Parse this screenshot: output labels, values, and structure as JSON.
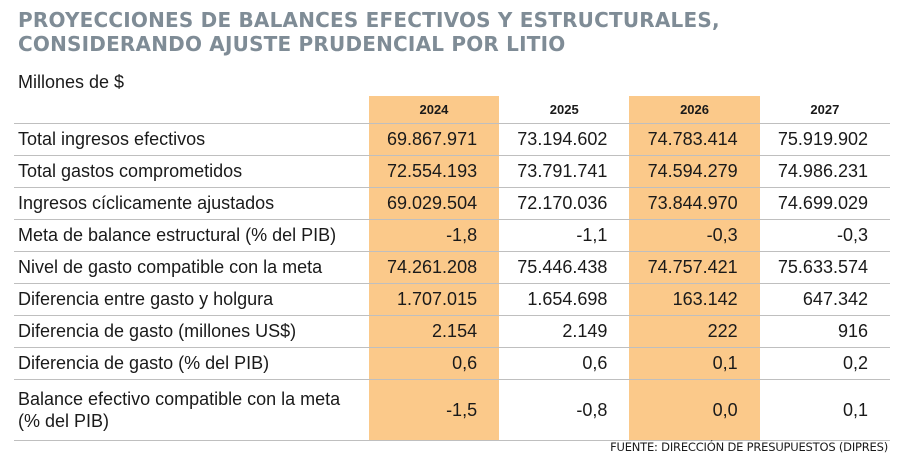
{
  "title_lines": [
    "PROYECCIONES DE BALANCES EFECTIVOS Y ESTRUCTURALES,",
    "CONSIDERANDO AJUSTE PRUDENCIAL POR LITIO"
  ],
  "units": "Millones de $",
  "highlight_color": "#fbc98a",
  "title_color": "#7f8c96",
  "table": {
    "years": [
      "2024",
      "2025",
      "2026",
      "2027"
    ],
    "highlighted_years": [
      "2024",
      "2026"
    ],
    "rows": [
      {
        "label": "Total ingresos efectivos",
        "values": [
          "69.867.971",
          "73.194.602",
          "74.783.414",
          "75.919.902"
        ]
      },
      {
        "label": "Total gastos comprometidos",
        "values": [
          "72.554.193",
          "73.791.741",
          "74.594.279",
          "74.986.231"
        ]
      },
      {
        "label": "Ingresos cíclicamente ajustados",
        "values": [
          "69.029.504",
          "72.170.036",
          "73.844.970",
          "74.699.029"
        ]
      },
      {
        "label": "Meta de balance estructural (% del PIB)",
        "values": [
          "-1,8",
          "-1,1",
          "-0,3",
          "-0,3"
        ]
      },
      {
        "label": "Nivel de gasto compatible con la meta",
        "values": [
          "74.261.208",
          "75.446.438",
          "74.757.421",
          "75.633.574"
        ]
      },
      {
        "label": "Diferencia entre gasto y holgura",
        "values": [
          "1.707.015",
          "1.654.698",
          "163.142",
          "647.342"
        ]
      },
      {
        "label": "Diferencia de gasto (millones US$)",
        "values": [
          "2.154",
          "2.149",
          "222",
          "916"
        ]
      },
      {
        "label": "Diferencia de gasto (% del PIB)",
        "values": [
          "0,6",
          "0,6",
          "0,1",
          "0,2"
        ]
      },
      {
        "label": "Balance efectivo compatible con la meta (% del PIB)",
        "values": [
          "-1,5",
          "-0,8",
          "0,0",
          "0,1"
        ]
      }
    ]
  },
  "source": "FUENTE: DIRECCIÓN DE PRESUPUESTOS (DIPRES)"
}
